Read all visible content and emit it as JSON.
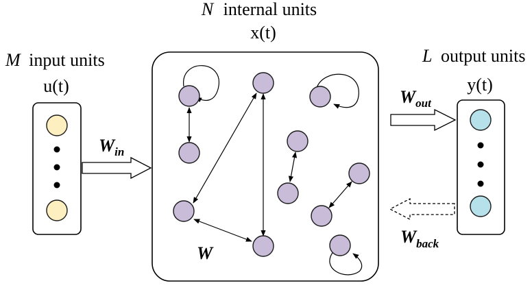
{
  "title": {
    "reservoir_var": "N",
    "reservoir_units": "internal units",
    "reservoir_signal": "x(t)"
  },
  "input": {
    "var": "M",
    "units": "input units",
    "signal": "u(t)"
  },
  "output": {
    "var": "L",
    "units": "output units",
    "signal": "y(t)"
  },
  "weights": {
    "w_in": {
      "base": "W",
      "sub": "in"
    },
    "w_out": {
      "base": "W",
      "sub": "out"
    },
    "w_back": {
      "base": "W",
      "sub": "back"
    },
    "w": "W"
  },
  "colors": {
    "input_node": "#fdefc0",
    "reservoir_node": "#c8bcd9",
    "output_node": "#b6e1ea",
    "stroke": "#000000"
  }
}
